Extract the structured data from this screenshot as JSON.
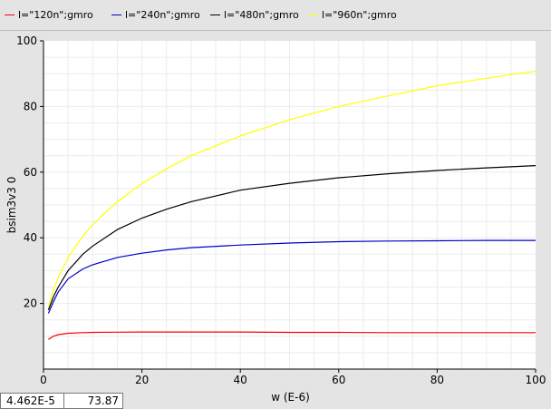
{
  "legend": [
    {
      "label": "l=\"120n\";gmro",
      "color": "#ff0000"
    },
    {
      "label": "l=\"240n\";gmro",
      "color": "#0000c8"
    },
    {
      "label": "l=\"480n\";gmro",
      "color": "#000000"
    },
    {
      "label": "l=\"960n\";gmro",
      "color": "#ffff00"
    }
  ],
  "coord_readout": {
    "x": "4.462E-5",
    "y": "73.87"
  },
  "chart_data": {
    "type": "line",
    "xlabel": "w (E-6)",
    "ylabel": "bsim3v3 0",
    "xlim": [
      0,
      100
    ],
    "ylim": [
      0,
      100
    ],
    "xticks": [
      0,
      20,
      40,
      60,
      80,
      100
    ],
    "yticks": [
      20,
      40,
      60,
      80,
      100
    ],
    "grid": true,
    "legend_position": "top",
    "series": [
      {
        "name": "l=\"120n\";gmro",
        "color": "#ff0000",
        "x": [
          1,
          2,
          3,
          5,
          8,
          10,
          20,
          30,
          40,
          50,
          60,
          70,
          80,
          90,
          100
        ],
        "y": [
          9,
          10,
          10.5,
          10.9,
          11.1,
          11.2,
          11.3,
          11.3,
          11.3,
          11.2,
          11.2,
          11.1,
          11.1,
          11.1,
          11.1
        ]
      },
      {
        "name": "l=\"240n\";gmro",
        "color": "#0000c8",
        "x": [
          1,
          2,
          3,
          5,
          8,
          10,
          15,
          20,
          25,
          30,
          40,
          50,
          60,
          70,
          80,
          90,
          100
        ],
        "y": [
          17,
          20.5,
          23.5,
          27.5,
          30.5,
          31.8,
          34,
          35.3,
          36.3,
          37,
          37.8,
          38.4,
          38.8,
          39,
          39.1,
          39.2,
          39.2
        ]
      },
      {
        "name": "l=\"480n\";gmro",
        "color": "#000000",
        "x": [
          1,
          2,
          3,
          5,
          8,
          10,
          15,
          20,
          25,
          30,
          40,
          50,
          60,
          70,
          80,
          90,
          100
        ],
        "y": [
          18,
          22,
          25,
          30,
          35,
          37.5,
          42.5,
          46,
          48.7,
          51,
          54.5,
          56.6,
          58.3,
          59.5,
          60.5,
          61.3,
          62
        ]
      },
      {
        "name": "l=\"960n\";gmro",
        "color": "#ffff00",
        "x": [
          1,
          2,
          3,
          5,
          8,
          10,
          15,
          20,
          25,
          30,
          40,
          50,
          60,
          70,
          80,
          90,
          100
        ],
        "y": [
          19,
          24,
          28,
          34,
          40.5,
          44,
          51,
          56.5,
          61,
          65,
          71,
          76,
          80,
          83.2,
          86.3,
          88.6,
          90.8
        ]
      }
    ]
  }
}
